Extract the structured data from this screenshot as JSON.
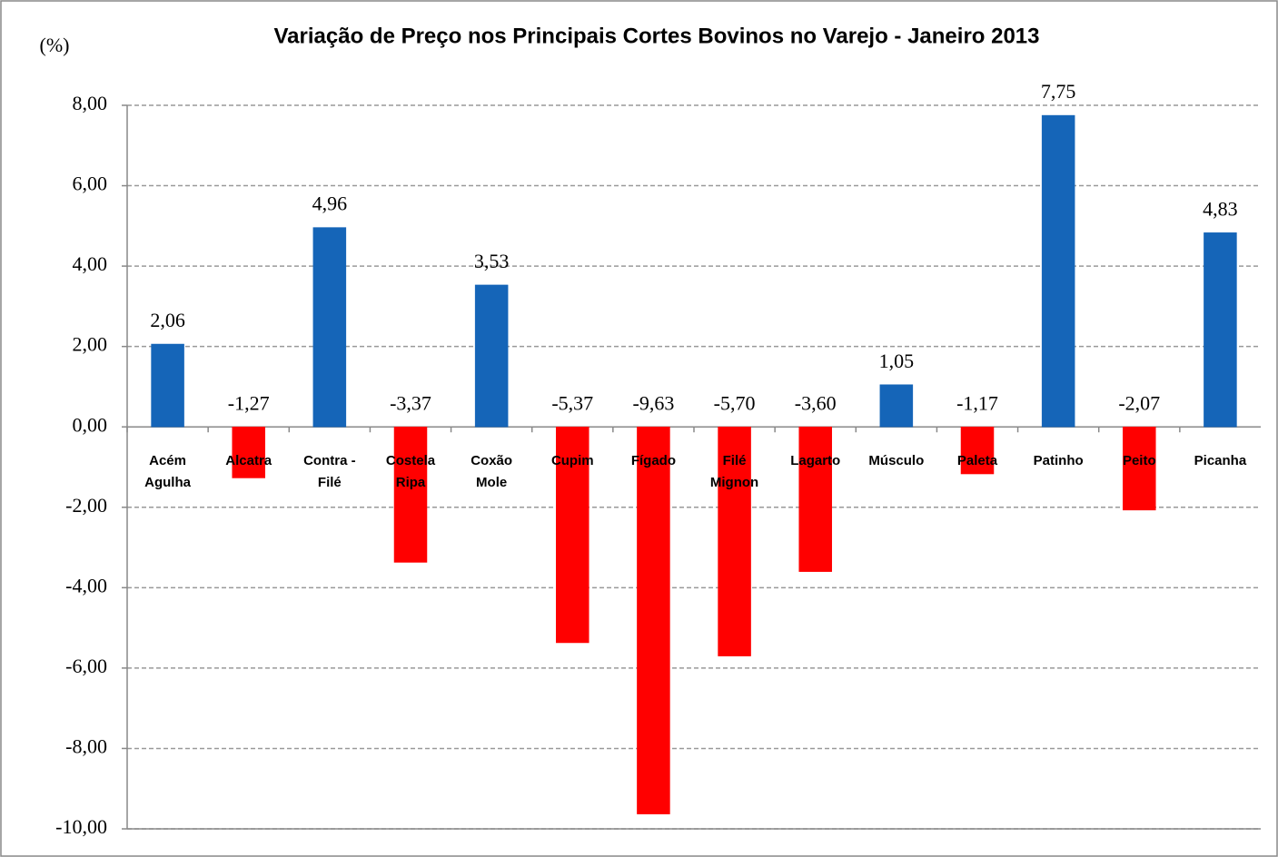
{
  "chart_data": {
    "type": "bar",
    "title": "Variação de Preço nos Principais Cortes Bovinos no Varejo -  Janeiro  2013",
    "y_label": "(%)",
    "categories": [
      "Acém Agulha",
      "Alcatra",
      "Contra - Filé",
      "Costela Ripa",
      "Coxão Mole",
      "Cupim",
      "Fígado",
      "Filé Mignon",
      "Lagarto",
      "Músculo",
      "Paleta",
      "Patinho",
      "Peito",
      "Picanha"
    ],
    "values": [
      2.06,
      -1.27,
      4.96,
      -3.37,
      3.53,
      -5.37,
      -9.63,
      -5.7,
      -3.6,
      1.05,
      -1.17,
      7.75,
      -2.07,
      4.83
    ],
    "value_labels": [
      "2,06",
      "-1,27",
      "4,96",
      "-3,37",
      "3,53",
      "-5,37",
      "-9,63",
      "-5,70",
      "-3,60",
      "1,05",
      "-1,17",
      "7,75",
      "-2,07",
      "4,83"
    ],
    "positive_color": "#1565b8",
    "negative_color": "#ff0000",
    "ylim": [
      -10,
      8
    ],
    "yticks": [
      {
        "value": -10,
        "label": "-10,00"
      },
      {
        "value": -8,
        "label": "-8,00"
      },
      {
        "value": -6,
        "label": "-6,00"
      },
      {
        "value": -4,
        "label": "-4,00"
      },
      {
        "value": -2,
        "label": "-2,00"
      },
      {
        "value": 0,
        "label": "0,00"
      },
      {
        "value": 2,
        "label": "2,00"
      },
      {
        "value": 4,
        "label": "4,00"
      },
      {
        "value": 6,
        "label": "6,00"
      },
      {
        "value": 8,
        "label": "8,00"
      }
    ],
    "grid": true
  }
}
